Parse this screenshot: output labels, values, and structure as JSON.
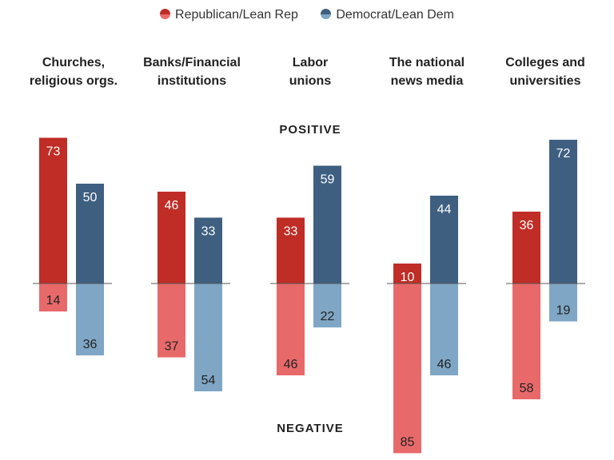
{
  "chart_data": {
    "type": "bar",
    "title": "",
    "legend": [
      {
        "name": "Republican/Lean Rep",
        "color_positive": "#bf2d26",
        "color_negative": "#e8696a"
      },
      {
        "name": "Democrat/Lean Dem",
        "color_positive": "#3e5f80",
        "color_negative": "#7fa6c4"
      }
    ],
    "categories": [
      "Churches, religious orgs.",
      "Banks/Financial institutions",
      "Labor unions",
      "The national news media",
      "Colleges and universities"
    ],
    "category_lines": [
      [
        "Churches,",
        "religious orgs."
      ],
      [
        "Banks/Financial",
        "institutions"
      ],
      [
        "Labor",
        "unions"
      ],
      [
        "The national",
        "news media"
      ],
      [
        "Colleges and",
        "universities"
      ]
    ],
    "positive_label": "POSITIVE",
    "negative_label": "NEGATIVE",
    "series": [
      {
        "name": "Republican/Lean Rep",
        "positive": [
          73,
          46,
          33,
          10,
          36
        ],
        "negative": [
          14,
          37,
          46,
          85,
          58
        ]
      },
      {
        "name": "Democrat/Lean Dem",
        "positive": [
          50,
          33,
          59,
          44,
          72
        ],
        "negative": [
          36,
          54,
          22,
          46,
          19
        ]
      }
    ]
  }
}
